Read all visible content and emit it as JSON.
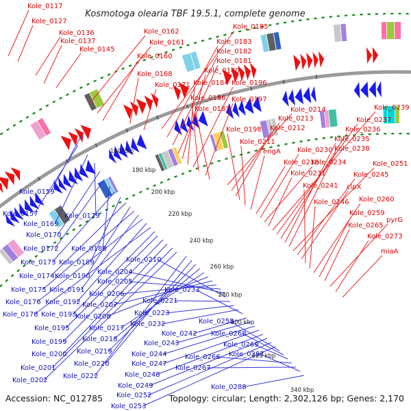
{
  "title": "Kosmotoga olearia TBF 19.5.1, complete genome",
  "footer": {
    "accession": "Accession: NC_012785",
    "summary": "Topology: circular; Length: 2,302,126 bp; Genes: 2,170"
  },
  "colors": {
    "forward": "#ee1111",
    "reverse": "#1a1aee",
    "backbone": "#9a9a9a",
    "dots": "#1c8c1c",
    "leader_red": "#ee2222",
    "leader_blue": "#3333dd",
    "text_red": "#dd0000",
    "text_blue": "#1111bb"
  },
  "ticks": [
    "160 kbp",
    "180 kbp",
    "200 kbp",
    "220 kbp",
    "240 kbp",
    "260 kbp",
    "280 kbp",
    "300 kbp",
    "320 kbp",
    "340 kbp"
  ],
  "labels_forward": [
    "Kole_0117",
    "Kole_0127",
    "Kole_0136",
    "Kole_0137",
    "Kole_0145",
    "Kole_0162",
    "Kole_0161",
    "Kole_0160",
    "Kole_0168",
    "Kole_0171",
    "Kole_0185",
    "Kole_0183",
    "Kole_0182",
    "Kole_0181",
    "Kole_0180",
    "Kole_0184",
    "Kole_0196",
    "Kole_0186",
    "Kole_0197",
    "Kole_0187",
    "Kole_0214",
    "Kole_0213",
    "Kole_0212",
    "Kole_0198",
    "Kole_0211",
    "engA",
    "Kole_0216",
    "Kole_0230",
    "Kole_0234",
    "Kole_0231",
    "Kole_0239",
    "Kole_0237",
    "Kole_0236",
    "Kole_0235",
    "Kole_0238",
    "Kole_0251",
    "Kole_0245",
    "clpX",
    "Kole_0241",
    "Kole_0246",
    "Kole_0260",
    "Kole_0259",
    "Kole_0265",
    "pyrG",
    "Kole_0273",
    "miaA"
  ],
  "labels_reverse": [
    "Kole_0159",
    "Kole_0157",
    "Kole_0169",
    "Kole_0179",
    "Kole_0170",
    "Kole_0172",
    "Kole_0188",
    "Kole_0173",
    "Kole_0189",
    "Kole_0174",
    "Kole_0190",
    "Kole_0175",
    "Kole_0191",
    "Kole_0176",
    "Kole_0192",
    "Kole_0178",
    "Kole_0193",
    "Kole_0195",
    "Kole_0199",
    "Kole_0200",
    "Kole_0201",
    "Kole_0202",
    "Kole_0222",
    "Kole_0220",
    "Kole_0219",
    "Kole_0218",
    "Kole_0217",
    "Kole_0208",
    "Kole_0207",
    "Kole_0206",
    "Kole_0205",
    "Kole_0204",
    "Kole_0210",
    "Kole_0221",
    "Kole_0223",
    "Kole_0232",
    "Kole_0233",
    "Kole_0242",
    "Kole_0243",
    "Kole_0244",
    "Kole_0247",
    "Kole_0248",
    "Kole_0249",
    "Kole_0252",
    "Kole_0253",
    "Kole_0258",
    "Kole_0268",
    "Kole_0269",
    "Kole_0266",
    "Kole_0267",
    "Kole_0287",
    "Kole_0288"
  ]
}
